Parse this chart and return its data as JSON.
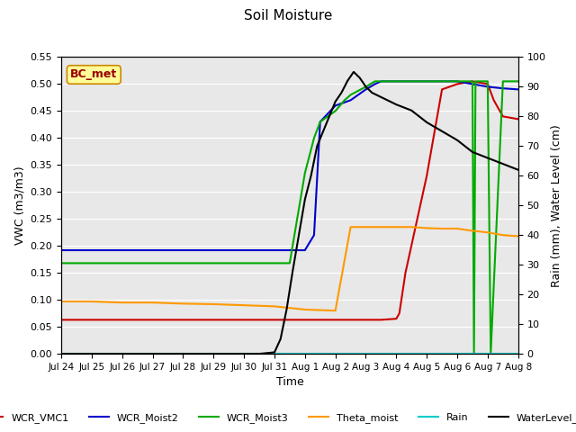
{
  "title": "Soil Moisture",
  "ylabel_left": "VWC (m3/m3)",
  "ylabel_right": "Rain (mm), Water Level (cm)",
  "xlabel": "Time",
  "annotation": "BC_met",
  "ylim_left": [
    0.0,
    0.55
  ],
  "ylim_right": [
    0,
    100
  ],
  "yticks_left": [
    0.0,
    0.05,
    0.1,
    0.15,
    0.2,
    0.25,
    0.3,
    0.35,
    0.4,
    0.45,
    0.5,
    0.55
  ],
  "yticks_right": [
    0,
    10,
    20,
    30,
    40,
    50,
    60,
    70,
    80,
    90,
    100
  ],
  "xtick_labels": [
    "Jul 24",
    "Jul 25",
    "Jul 26",
    "Jul 27",
    "Jul 28",
    "Jul 29",
    "Jul 30",
    "Jul 31",
    "Aug 1",
    "Aug 2",
    "Aug 3",
    "Aug 4",
    "Aug 5",
    "Aug 6",
    "Aug 7",
    "Aug 8"
  ],
  "bg_color": "#e8e8e8",
  "series": {
    "WCR_VMC1": {
      "color": "#cc0000",
      "x": [
        0,
        1,
        2,
        3,
        4,
        5,
        6,
        7,
        7.5,
        8,
        8.5,
        8.7,
        9,
        10,
        10.5,
        11,
        11.1,
        11.3,
        12,
        12.5,
        13,
        13.5,
        14,
        14.2,
        14.5,
        15
      ],
      "y": [
        0.063,
        0.063,
        0.063,
        0.063,
        0.063,
        0.063,
        0.063,
        0.063,
        0.063,
        0.063,
        0.063,
        0.063,
        0.063,
        0.063,
        0.063,
        0.065,
        0.075,
        0.15,
        0.33,
        0.49,
        0.5,
        0.505,
        0.5,
        0.47,
        0.44,
        0.435
      ]
    },
    "WCR_Moist2": {
      "color": "#0000cc",
      "x": [
        0,
        1,
        2,
        3,
        4,
        5,
        6,
        7,
        7.5,
        8,
        8.3,
        8.5,
        9,
        9.5,
        10,
        10.3,
        10.5,
        11,
        12,
        13,
        13.5,
        14,
        14.5,
        15
      ],
      "y": [
        0.192,
        0.192,
        0.192,
        0.192,
        0.192,
        0.192,
        0.192,
        0.192,
        0.192,
        0.192,
        0.22,
        0.43,
        0.46,
        0.47,
        0.49,
        0.5,
        0.505,
        0.505,
        0.505,
        0.505,
        0.5,
        0.495,
        0.492,
        0.49
      ]
    },
    "WCR_Moist3": {
      "color": "#00aa00",
      "x": [
        0,
        1,
        2,
        3,
        4,
        5,
        6,
        7,
        7.5,
        8,
        8.3,
        8.5,
        9,
        9.3,
        9.5,
        10,
        10.3,
        10.5,
        11,
        12,
        13,
        13.5,
        13.55,
        13.6,
        14,
        14.1,
        14.5,
        15
      ],
      "y": [
        0.168,
        0.168,
        0.168,
        0.168,
        0.168,
        0.168,
        0.168,
        0.168,
        0.168,
        0.335,
        0.4,
        0.43,
        0.45,
        0.47,
        0.48,
        0.495,
        0.505,
        0.505,
        0.505,
        0.505,
        0.505,
        0.505,
        0.0,
        0.505,
        0.505,
        0.0,
        0.505,
        0.505
      ]
    },
    "Theta_moist": {
      "color": "#ff9900",
      "x": [
        0,
        1,
        2,
        3,
        4,
        5,
        6,
        7,
        8,
        9,
        9.5,
        10,
        10.5,
        11,
        11.5,
        12,
        12.5,
        13,
        13.5,
        14,
        14.5,
        15
      ],
      "y": [
        0.097,
        0.097,
        0.095,
        0.095,
        0.093,
        0.092,
        0.09,
        0.088,
        0.082,
        0.08,
        0.235,
        0.235,
        0.235,
        0.235,
        0.235,
        0.233,
        0.232,
        0.232,
        0.228,
        0.225,
        0.22,
        0.218
      ]
    },
    "Rain": {
      "color": "#00cccc",
      "x": [
        0,
        15
      ],
      "y": [
        0.0,
        0.0
      ]
    },
    "WaterLevel_cm": {
      "color": "#000000",
      "x": [
        0,
        0.5,
        1,
        1.5,
        2,
        2.5,
        3,
        3.5,
        4,
        4.5,
        5,
        5.5,
        6,
        6.5,
        7,
        7.2,
        7.4,
        7.6,
        7.8,
        8,
        8.2,
        8.4,
        8.6,
        8.8,
        9,
        9.2,
        9.4,
        9.6,
        9.8,
        10,
        10.2,
        10.4,
        10.6,
        10.8,
        11,
        11.5,
        12,
        12.5,
        13,
        13.5,
        14,
        14.5,
        15
      ],
      "y": [
        0,
        0,
        0,
        0,
        0,
        0,
        0,
        0,
        0,
        0,
        0,
        0,
        0,
        0,
        0.5,
        5,
        15,
        28,
        40,
        52,
        60,
        70,
        75,
        80,
        85,
        88,
        92,
        95,
        93,
        90,
        88,
        87,
        86,
        85,
        84,
        82,
        78,
        75,
        72,
        68,
        66,
        64,
        62
      ]
    }
  }
}
